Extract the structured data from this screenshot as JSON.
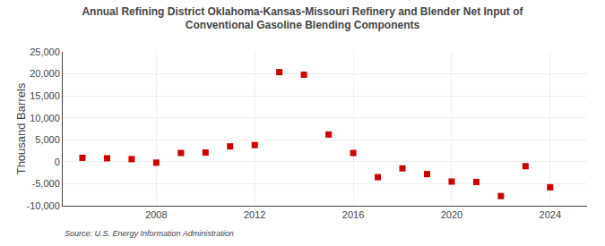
{
  "chart_data": {
    "type": "scatter",
    "title": "Annual Refining District Oklahoma-Kansas-Missouri Refinery and Blender Net Input of\nConventional Gasoline Blending Components",
    "ylabel": "Thousand Barrels",
    "source": "Source: U.S. Energy Information Administration",
    "x": [
      2005,
      2006,
      2007,
      2008,
      2009,
      2010,
      2011,
      2012,
      2013,
      2014,
      2015,
      2016,
      2017,
      2018,
      2019,
      2020,
      2021,
      2022,
      2023,
      2024
    ],
    "values": [
      900,
      800,
      600,
      -200,
      2000,
      2100,
      3500,
      3800,
      20400,
      19800,
      6200,
      2000,
      -3500,
      -1500,
      -2800,
      -4500,
      -4600,
      -7800,
      -1000,
      -5800
    ],
    "color": "#cc0000",
    "marker": "square",
    "xlim": [
      2004.2,
      2025.5
    ],
    "xticks": [
      2008,
      2012,
      2016,
      2020,
      2024
    ],
    "ylim": [
      -10000,
      25000
    ],
    "yticks": [
      {
        "value": -10000,
        "label": "-10,000"
      },
      {
        "value": -5000,
        "label": "-5,000"
      },
      0,
      {
        "value": 5000,
        "label": "5,000"
      },
      {
        "value": 10000,
        "label": "10,000"
      },
      {
        "value": 15000,
        "label": "15,000"
      },
      {
        "value": 20000,
        "label": "20,000"
      },
      {
        "value": 25000,
        "label": "25,000"
      }
    ],
    "grid": true
  }
}
